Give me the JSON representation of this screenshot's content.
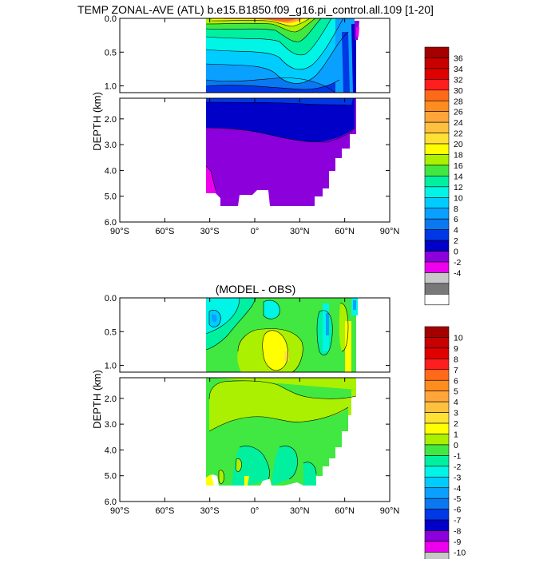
{
  "chart_data": [
    {
      "type": "heatmap",
      "title": "TEMP ZONAL-AVE (ATL) b.e15.B1850.f09_g16.pi_control.all.109 [1-20]",
      "subtitle": "",
      "ylabel": "DEPTH (km)",
      "xlabel": "",
      "x_ticks": [
        "90°S",
        "60°S",
        "30°S",
        "0°",
        "30°N",
        "60°N",
        "90°N"
      ],
      "y_ticks_upper": [
        "0.0",
        "0.5",
        "1.0"
      ],
      "y_ticks_lower": [
        "2.0",
        "3.0",
        "4.0",
        "5.0",
        "6.0"
      ],
      "xlim": [
        -90,
        90
      ],
      "ylim": [
        0,
        6
      ],
      "colorbar_labels": [
        "36",
        "34",
        "32",
        "30",
        "28",
        "26",
        "24",
        "22",
        "20",
        "18",
        "16",
        "14",
        "12",
        "10",
        "8",
        "6",
        "4",
        "2",
        "0",
        "-2",
        "-4"
      ],
      "colorbar_colors": [
        "#a50000",
        "#c80000",
        "#e00000",
        "#ff1e1e",
        "#ff6a1a",
        "#ff8c1e",
        "#ffa53a",
        "#ffc040",
        "#ffe135",
        "#ffff00",
        "#aaf000",
        "#41e841",
        "#00f0a0",
        "#00f5e6",
        "#00ccff",
        "#0aa0ff",
        "#0a78f0",
        "#0038e6",
        "#0000c8",
        "#8c00dc",
        "#ee00ee",
        "#c8c8c8",
        "#787878",
        "#ffffff"
      ]
    },
    {
      "type": "heatmap",
      "title": "(MODEL - OBS)",
      "ylabel": "DEPTH (km)",
      "xlabel": "",
      "x_ticks": [
        "90°S",
        "60°S",
        "30°S",
        "0°",
        "30°N",
        "60°N",
        "90°N"
      ],
      "y_ticks_upper": [
        "0.0",
        "0.5",
        "1.0"
      ],
      "y_ticks_lower": [
        "2.0",
        "3.0",
        "4.0",
        "5.0",
        "6.0"
      ],
      "xlim": [
        -90,
        90
      ],
      "ylim": [
        0,
        6
      ],
      "colorbar_labels": [
        "10",
        "9",
        "8",
        "7",
        "6",
        "5",
        "4",
        "3",
        "2",
        "1",
        "0",
        "-1",
        "-2",
        "-3",
        "-4",
        "-5",
        "-6",
        "-7",
        "-8",
        "-9",
        "-10"
      ],
      "colorbar_colors": [
        "#a50000",
        "#c80000",
        "#e00000",
        "#ff1e1e",
        "#ff6a1a",
        "#ff8c1e",
        "#ffa53a",
        "#ffc040",
        "#ffe135",
        "#ffff00",
        "#aaf000",
        "#41e841",
        "#00f0a0",
        "#00f5e6",
        "#00ccff",
        "#0aa0ff",
        "#0a78f0",
        "#0038e6",
        "#0000c8",
        "#8c00dc",
        "#ee00ee",
        "#c8c8c8",
        "#787878",
        "#ffffff"
      ]
    }
  ]
}
